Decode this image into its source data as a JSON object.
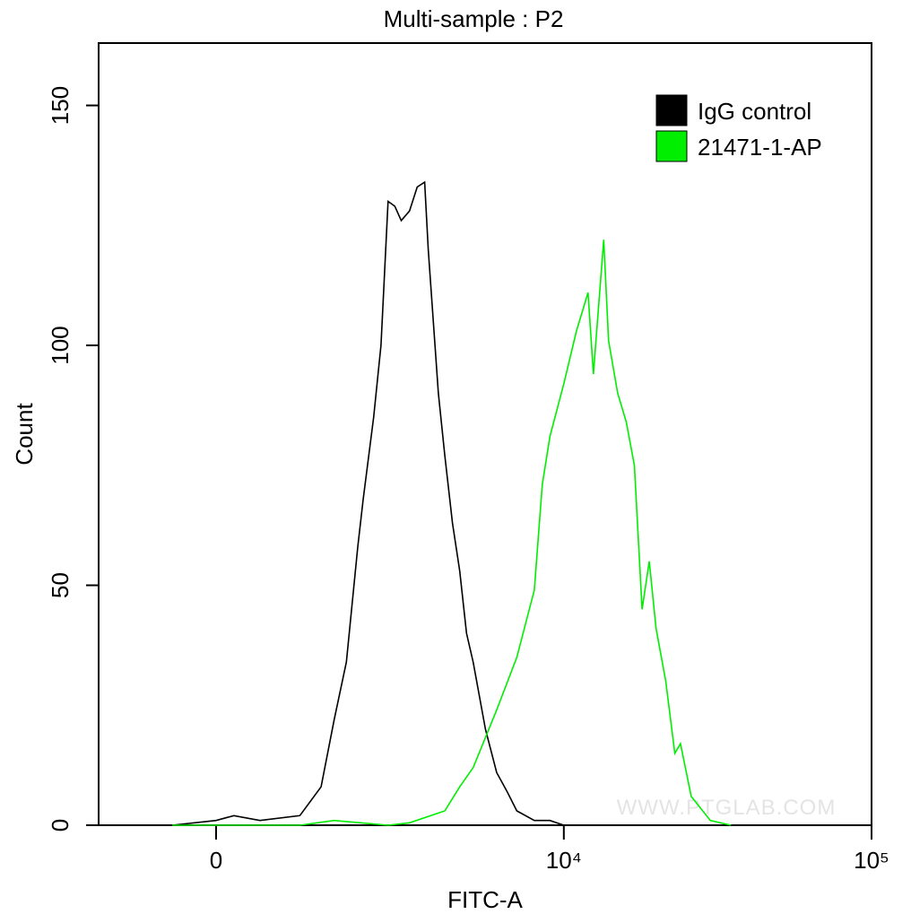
{
  "chart_data": {
    "type": "line",
    "title": "Multi-sample : P2",
    "x_label": "FITC-A",
    "y_label": "Count",
    "watermark": "WWW.PTGLAB.COM",
    "x_scale": "arcsinh",
    "x_cofactor": 1500,
    "xlim": [
      -1490,
      100000
    ],
    "xticks": [
      {
        "value": 0,
        "label": "0"
      },
      {
        "value": 10000,
        "label": "10⁴"
      },
      {
        "value": 100000,
        "label": "10⁵"
      }
    ],
    "ylim": [
      0,
      163
    ],
    "yticks": [
      0,
      50,
      100,
      150
    ],
    "legend": "top-right",
    "series": [
      {
        "name": "IgG control",
        "color": "#000000",
        "x": [
          -500,
          0,
          200,
          500,
          1000,
          1300,
          1500,
          1700,
          1900,
          2000,
          2200,
          2350,
          2500,
          2650,
          2800,
          3000,
          3200,
          3400,
          3500,
          3800,
          4000,
          4250,
          4500,
          4750,
          5000,
          5500,
          6000,
          6500,
          7000,
          8000,
          9000,
          10000
        ],
        "values": [
          0,
          1,
          2,
          1,
          2,
          8,
          22,
          34,
          58,
          68,
          85,
          100,
          130,
          129,
          126,
          128,
          133,
          134,
          120,
          90,
          77,
          63,
          53,
          40,
          34,
          20,
          11,
          7,
          3,
          1,
          1,
          0
        ]
      },
      {
        "name": "21471-1-AP",
        "color": "#00ee00",
        "x": [
          -500,
          1000,
          1500,
          2500,
          3000,
          4000,
          4500,
          5000,
          6000,
          7000,
          8000,
          8500,
          9000,
          10000,
          11000,
          12000,
          12500,
          13500,
          14000,
          15000,
          16000,
          17000,
          18000,
          19000,
          20000,
          21500,
          23000,
          24000,
          26000,
          30000,
          35000
        ],
        "values": [
          0,
          0,
          1,
          0,
          0.5,
          3,
          8,
          12,
          24,
          35,
          49,
          71,
          81,
          92,
          103,
          111,
          94,
          122,
          101,
          90,
          84,
          75,
          45,
          55,
          41,
          30,
          15,
          17,
          6,
          1,
          0
        ]
      }
    ]
  }
}
